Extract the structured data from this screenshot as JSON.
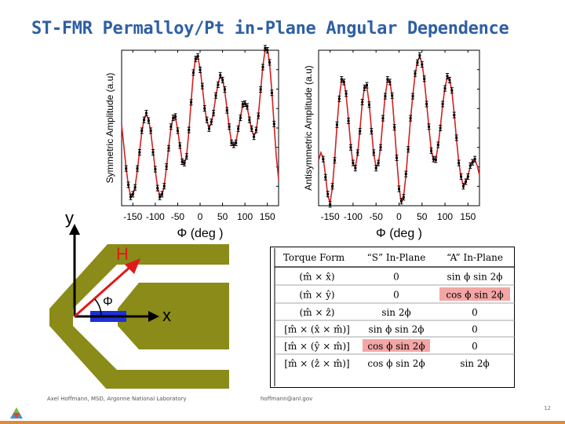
{
  "slide": {
    "title": "ST-FMR Permalloy/Pt in-Plane Angular Dependence",
    "footer_left": "Axel Hoffmann, MSD, Argonne National Laboratory",
    "footer_email": "hoffmann@anl.gov",
    "page_number": "12"
  },
  "colors": {
    "title": "#2e5fa3",
    "fit": "#d42020",
    "film": "#8b8b19",
    "highlight": "#f4a6a6",
    "current": "#1f2fd6",
    "field_arrow": "#e01a1a"
  },
  "chart_data": [
    {
      "type": "scatter",
      "title": "",
      "xlabel": "Φ (deg )",
      "ylabel": "Symmetric Amplitude (a.u)",
      "xlim": [
        -175,
        175
      ],
      "ylim": [
        -1.15,
        1.15
      ],
      "xticks": [
        -150,
        -100,
        -50,
        0,
        50,
        100,
        150
      ],
      "yticks": [],
      "series": [
        {
          "kind": "fit",
          "x": [
            -175,
            -170,
            -165,
            -160,
            -155,
            -150,
            -145,
            -140,
            -135,
            -130,
            -125,
            -120,
            -115,
            -110,
            -105,
            -100,
            -95,
            -90,
            -85,
            -80,
            -75,
            -70,
            -65,
            -60,
            -55,
            -50,
            -45,
            -40,
            -35,
            -30,
            -25,
            -20,
            -15,
            -10,
            -5,
            0,
            5,
            10,
            15,
            20,
            25,
            30,
            35,
            40,
            45,
            50,
            55,
            60,
            65,
            70,
            75,
            80,
            85,
            90,
            95,
            100,
            105,
            110,
            115,
            120,
            125,
            130,
            135,
            140,
            145,
            150,
            155,
            160,
            165,
            170,
            175
          ],
          "y": [
            0.05,
            -0.28,
            -0.59,
            -0.85,
            -1.0,
            -1.0,
            -0.87,
            -0.63,
            -0.34,
            -0.06,
            0.13,
            0.2,
            0.13,
            -0.06,
            -0.34,
            -0.63,
            -0.87,
            -1.0,
            -1.0,
            -0.85,
            -0.59,
            -0.28,
            0.0,
            0.16,
            0.15,
            -0.02,
            -0.27,
            -0.48,
            -0.54,
            -0.4,
            -0.05,
            0.4,
            0.8,
            1.04,
            1.05,
            0.88,
            0.6,
            0.31,
            0.1,
            0.01,
            0.07,
            0.24,
            0.46,
            0.66,
            0.76,
            0.73,
            0.55,
            0.28,
            0.0,
            -0.2,
            -0.27,
            -0.2,
            -0.03,
            0.17,
            0.33,
            0.38,
            0.3,
            0.14,
            -0.03,
            -0.11,
            -0.05,
            0.2,
            0.55,
            0.92,
            1.16,
            1.17,
            0.95,
            0.55,
            0.04,
            -0.42,
            -0.76
          ]
        },
        {
          "kind": "data",
          "x": [
            -165,
            -160,
            -155,
            -150,
            -145,
            -140,
            -135,
            -130,
            -125,
            -120,
            -115,
            -110,
            -105,
            -100,
            -95,
            -90,
            -85,
            -80,
            -75,
            -70,
            -65,
            -60,
            -55,
            -50,
            -45,
            -40,
            -35,
            -30,
            -25,
            -20,
            -15,
            -10,
            -5,
            0,
            5,
            10,
            15,
            20,
            25,
            30,
            35,
            40,
            45,
            50,
            55,
            60,
            65,
            70,
            75,
            80,
            85,
            90,
            95,
            100,
            105,
            110,
            115,
            120,
            125,
            130,
            135,
            140,
            145,
            150,
            155,
            160,
            165
          ],
          "y": [
            -0.6,
            -0.84,
            -1.02,
            -0.98,
            -0.88,
            -0.6,
            -0.36,
            -0.04,
            0.12,
            0.22,
            0.11,
            -0.04,
            -0.36,
            -0.61,
            -0.89,
            -1.02,
            -0.98,
            -0.86,
            -0.57,
            -0.3,
            0.02,
            0.15,
            0.17,
            -0.04,
            -0.26,
            -0.5,
            -0.52,
            -0.42,
            -0.03,
            0.38,
            0.82,
            1.02,
            1.06,
            0.86,
            0.62,
            0.29,
            0.12,
            -0.01,
            0.09,
            0.22,
            0.48,
            0.64,
            0.78,
            0.71,
            0.57,
            0.26,
            0.02,
            -0.22,
            -0.25,
            -0.22,
            -0.01,
            0.15,
            0.35,
            0.36,
            0.32,
            0.12,
            -0.01,
            -0.13,
            -0.03,
            0.18,
            0.57,
            0.9,
            1.18,
            1.15,
            0.97,
            0.52,
            0.06
          ]
        }
      ]
    },
    {
      "type": "scatter",
      "title": "",
      "xlabel": "Φ (deg )",
      "ylabel": "Antisymmetric Amplitude (a.u)",
      "xlim": [
        -175,
        175
      ],
      "ylim": [
        -1.2,
        1.2
      ],
      "xticks": [
        -150,
        -100,
        -50,
        0,
        50,
        100,
        150
      ],
      "yticks": [],
      "series": [
        {
          "kind": "fit",
          "x": [
            -175,
            -170,
            -165,
            -160,
            -155,
            -150,
            -145,
            -140,
            -135,
            -130,
            -125,
            -120,
            -115,
            -110,
            -105,
            -100,
            -95,
            -90,
            -85,
            -80,
            -75,
            -70,
            -65,
            -60,
            -55,
            -50,
            -45,
            -40,
            -35,
            -30,
            -25,
            -20,
            -15,
            -10,
            -5,
            0,
            5,
            10,
            15,
            20,
            25,
            30,
            35,
            40,
            45,
            50,
            55,
            60,
            65,
            70,
            75,
            80,
            85,
            90,
            95,
            100,
            105,
            110,
            115,
            120,
            125,
            130,
            135,
            140,
            145,
            150,
            155,
            160,
            165,
            170,
            175
          ],
          "y": [
            -0.5,
            -0.38,
            -0.47,
            -0.73,
            -1.05,
            -1.15,
            -0.92,
            -0.48,
            0.03,
            0.48,
            0.73,
            0.73,
            0.51,
            0.13,
            -0.28,
            -0.56,
            -0.6,
            -0.4,
            -0.03,
            0.38,
            0.64,
            0.64,
            0.38,
            -0.03,
            -0.4,
            -0.6,
            -0.56,
            -0.28,
            0.13,
            0.51,
            0.73,
            0.73,
            0.48,
            0.03,
            -0.48,
            -0.92,
            -1.15,
            -1.05,
            -0.73,
            -0.31,
            0.13,
            0.51,
            0.82,
            1.03,
            1.1,
            1.0,
            0.74,
            0.39,
            0.0,
            -0.33,
            -0.5,
            -0.47,
            -0.28,
            0.02,
            0.35,
            0.63,
            0.78,
            0.76,
            0.56,
            0.22,
            -0.17,
            -0.52,
            -0.77,
            -0.88,
            -0.85,
            -0.73,
            -0.6,
            -0.51,
            -0.5,
            -0.58,
            -0.73
          ]
        },
        {
          "kind": "data",
          "x": [
            -165,
            -160,
            -155,
            -150,
            -145,
            -140,
            -135,
            -130,
            -125,
            -120,
            -115,
            -110,
            -105,
            -100,
            -95,
            -90,
            -85,
            -80,
            -75,
            -70,
            -65,
            -60,
            -55,
            -50,
            -45,
            -40,
            -35,
            -30,
            -25,
            -20,
            -15,
            -10,
            -5,
            0,
            5,
            10,
            15,
            20,
            25,
            30,
            35,
            40,
            45,
            50,
            55,
            60,
            65,
            70,
            75,
            80,
            85,
            90,
            95,
            100,
            105,
            110,
            115,
            120,
            125,
            130,
            135,
            140,
            145,
            150,
            155,
            160,
            165
          ],
          "y": [
            -0.48,
            -0.76,
            -1.02,
            -1.18,
            -0.9,
            -0.5,
            0.05,
            0.45,
            0.75,
            0.71,
            0.53,
            0.11,
            -0.3,
            -0.54,
            -0.62,
            -0.38,
            -0.05,
            0.4,
            0.62,
            0.66,
            0.36,
            -0.05,
            -0.38,
            -0.62,
            -0.54,
            -0.3,
            0.15,
            0.49,
            0.75,
            0.71,
            0.5,
            0.01,
            -0.46,
            -0.94,
            -1.13,
            -1.07,
            -0.71,
            -0.33,
            0.15,
            0.49,
            0.84,
            1.01,
            1.12,
            0.98,
            0.76,
            0.37,
            0.02,
            -0.35,
            -0.48,
            -0.49,
            -0.26,
            0.0,
            0.37,
            0.61,
            0.8,
            0.74,
            0.58,
            0.2,
            -0.15,
            -0.54,
            -0.75,
            -0.9,
            -0.83,
            -0.75,
            -0.58,
            -0.53,
            -0.48
          ]
        }
      ]
    },
    {
      "type": "table",
      "columns": [
        "Torque Form",
        "“S” In-Plane",
        "“A” In-Plane"
      ],
      "rows": [
        [
          "(m̂ × x̂)",
          "0",
          "sin ϕ sin 2ϕ"
        ],
        [
          "(m̂ × ŷ)",
          "0",
          "cos ϕ sin 2ϕ"
        ],
        [
          "(m̂ × ẑ)",
          "sin 2ϕ",
          "0"
        ],
        [
          "[m̂ × (x̂ × m̂)]",
          "sin ϕ sin 2ϕ",
          "0"
        ],
        [
          "[m̂ × (ŷ × m̂)]",
          "cos ϕ sin 2ϕ",
          "0"
        ],
        [
          "[m̂ × (ẑ × m̂)]",
          "cos ϕ sin 2ϕ",
          "sin 2ϕ"
        ]
      ],
      "highlighted_cells": [
        [
          1,
          2
        ],
        [
          4,
          1
        ]
      ]
    }
  ],
  "diagram": {
    "y_axis_label": "y",
    "x_axis_label": "x",
    "field_label": "H",
    "angle_label": "Φ"
  }
}
